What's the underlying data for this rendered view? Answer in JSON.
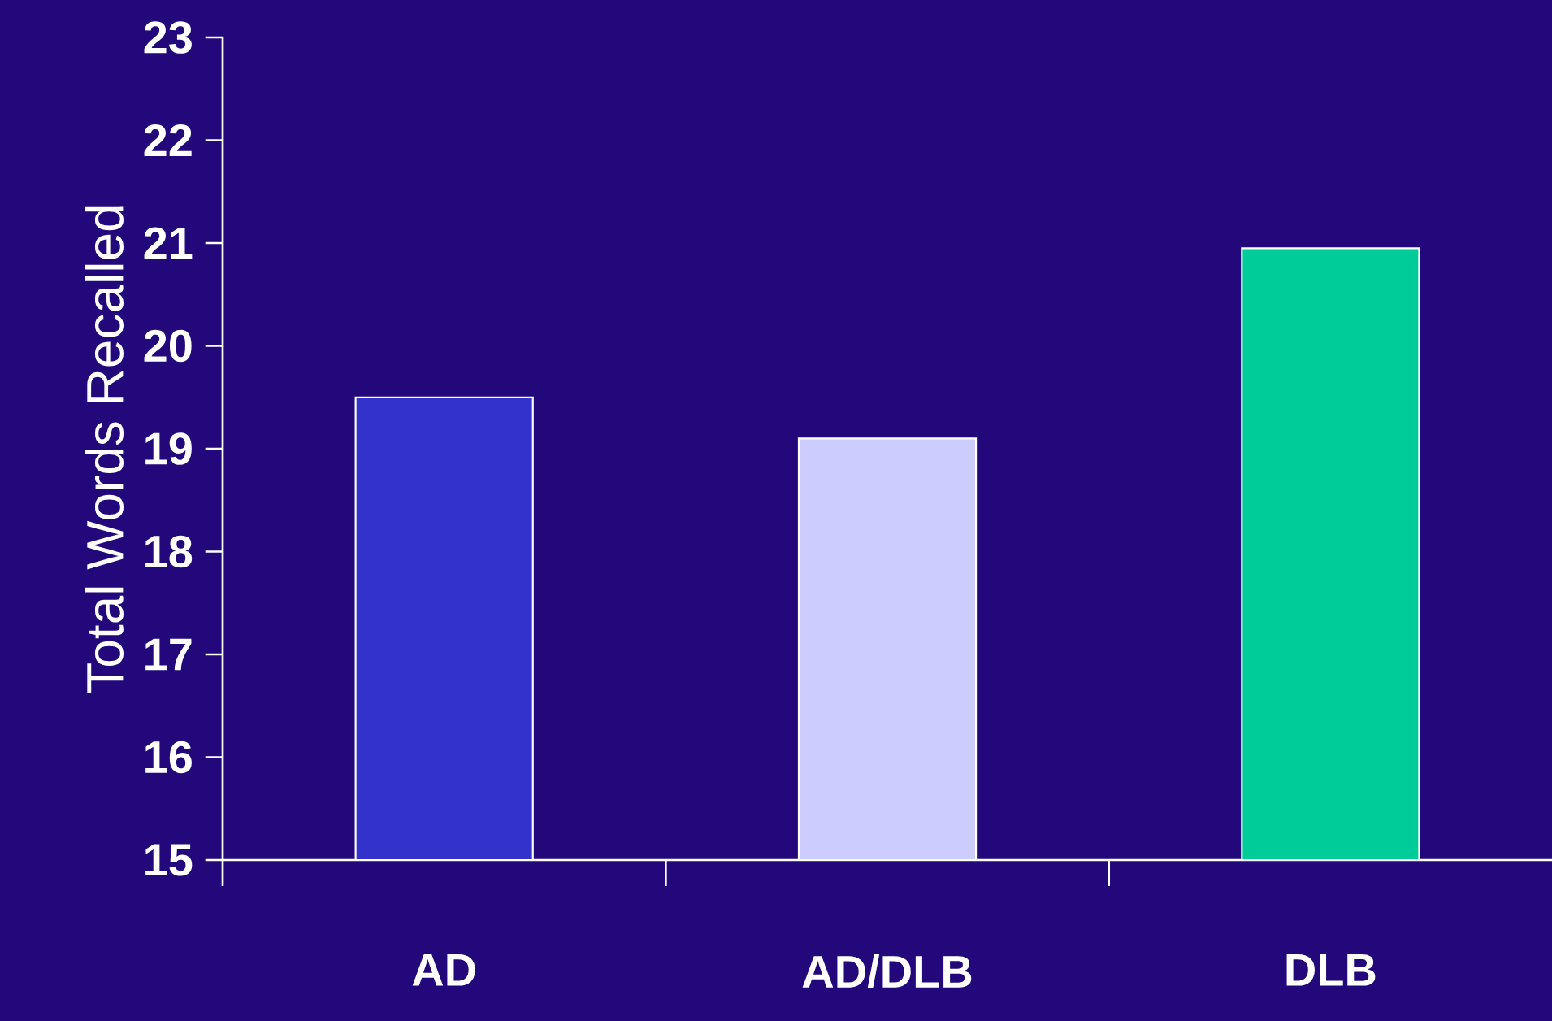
{
  "chart_data": {
    "type": "bar",
    "ylabel": "Total Words  Recalled",
    "categories": [
      "AD",
      "AD/DLB",
      "DLB"
    ],
    "values": [
      19.5,
      19.1,
      20.95
    ],
    "colors": [
      "#3333cc",
      "#ccccff",
      "#00cc99"
    ],
    "ylim": [
      15,
      23
    ],
    "yticks": [
      15,
      16,
      17,
      18,
      19,
      20,
      21,
      22,
      23
    ]
  }
}
